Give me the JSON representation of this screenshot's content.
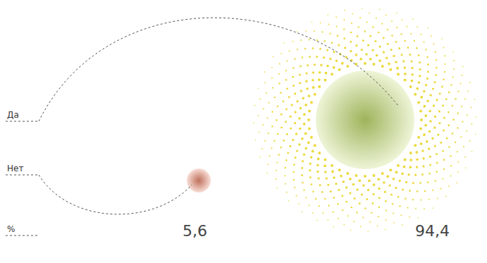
{
  "chart_data": {
    "type": "bubble",
    "categories": [
      "Да",
      "Нет"
    ],
    "values": [
      94.4,
      5.6
    ],
    "value_labels": [
      "94,4",
      "5,6"
    ],
    "annotations": [
      "%"
    ],
    "colors": [
      "#9cc41a",
      "#d9441c"
    ],
    "data_labels": true,
    "tick_labels": false
  }
}
